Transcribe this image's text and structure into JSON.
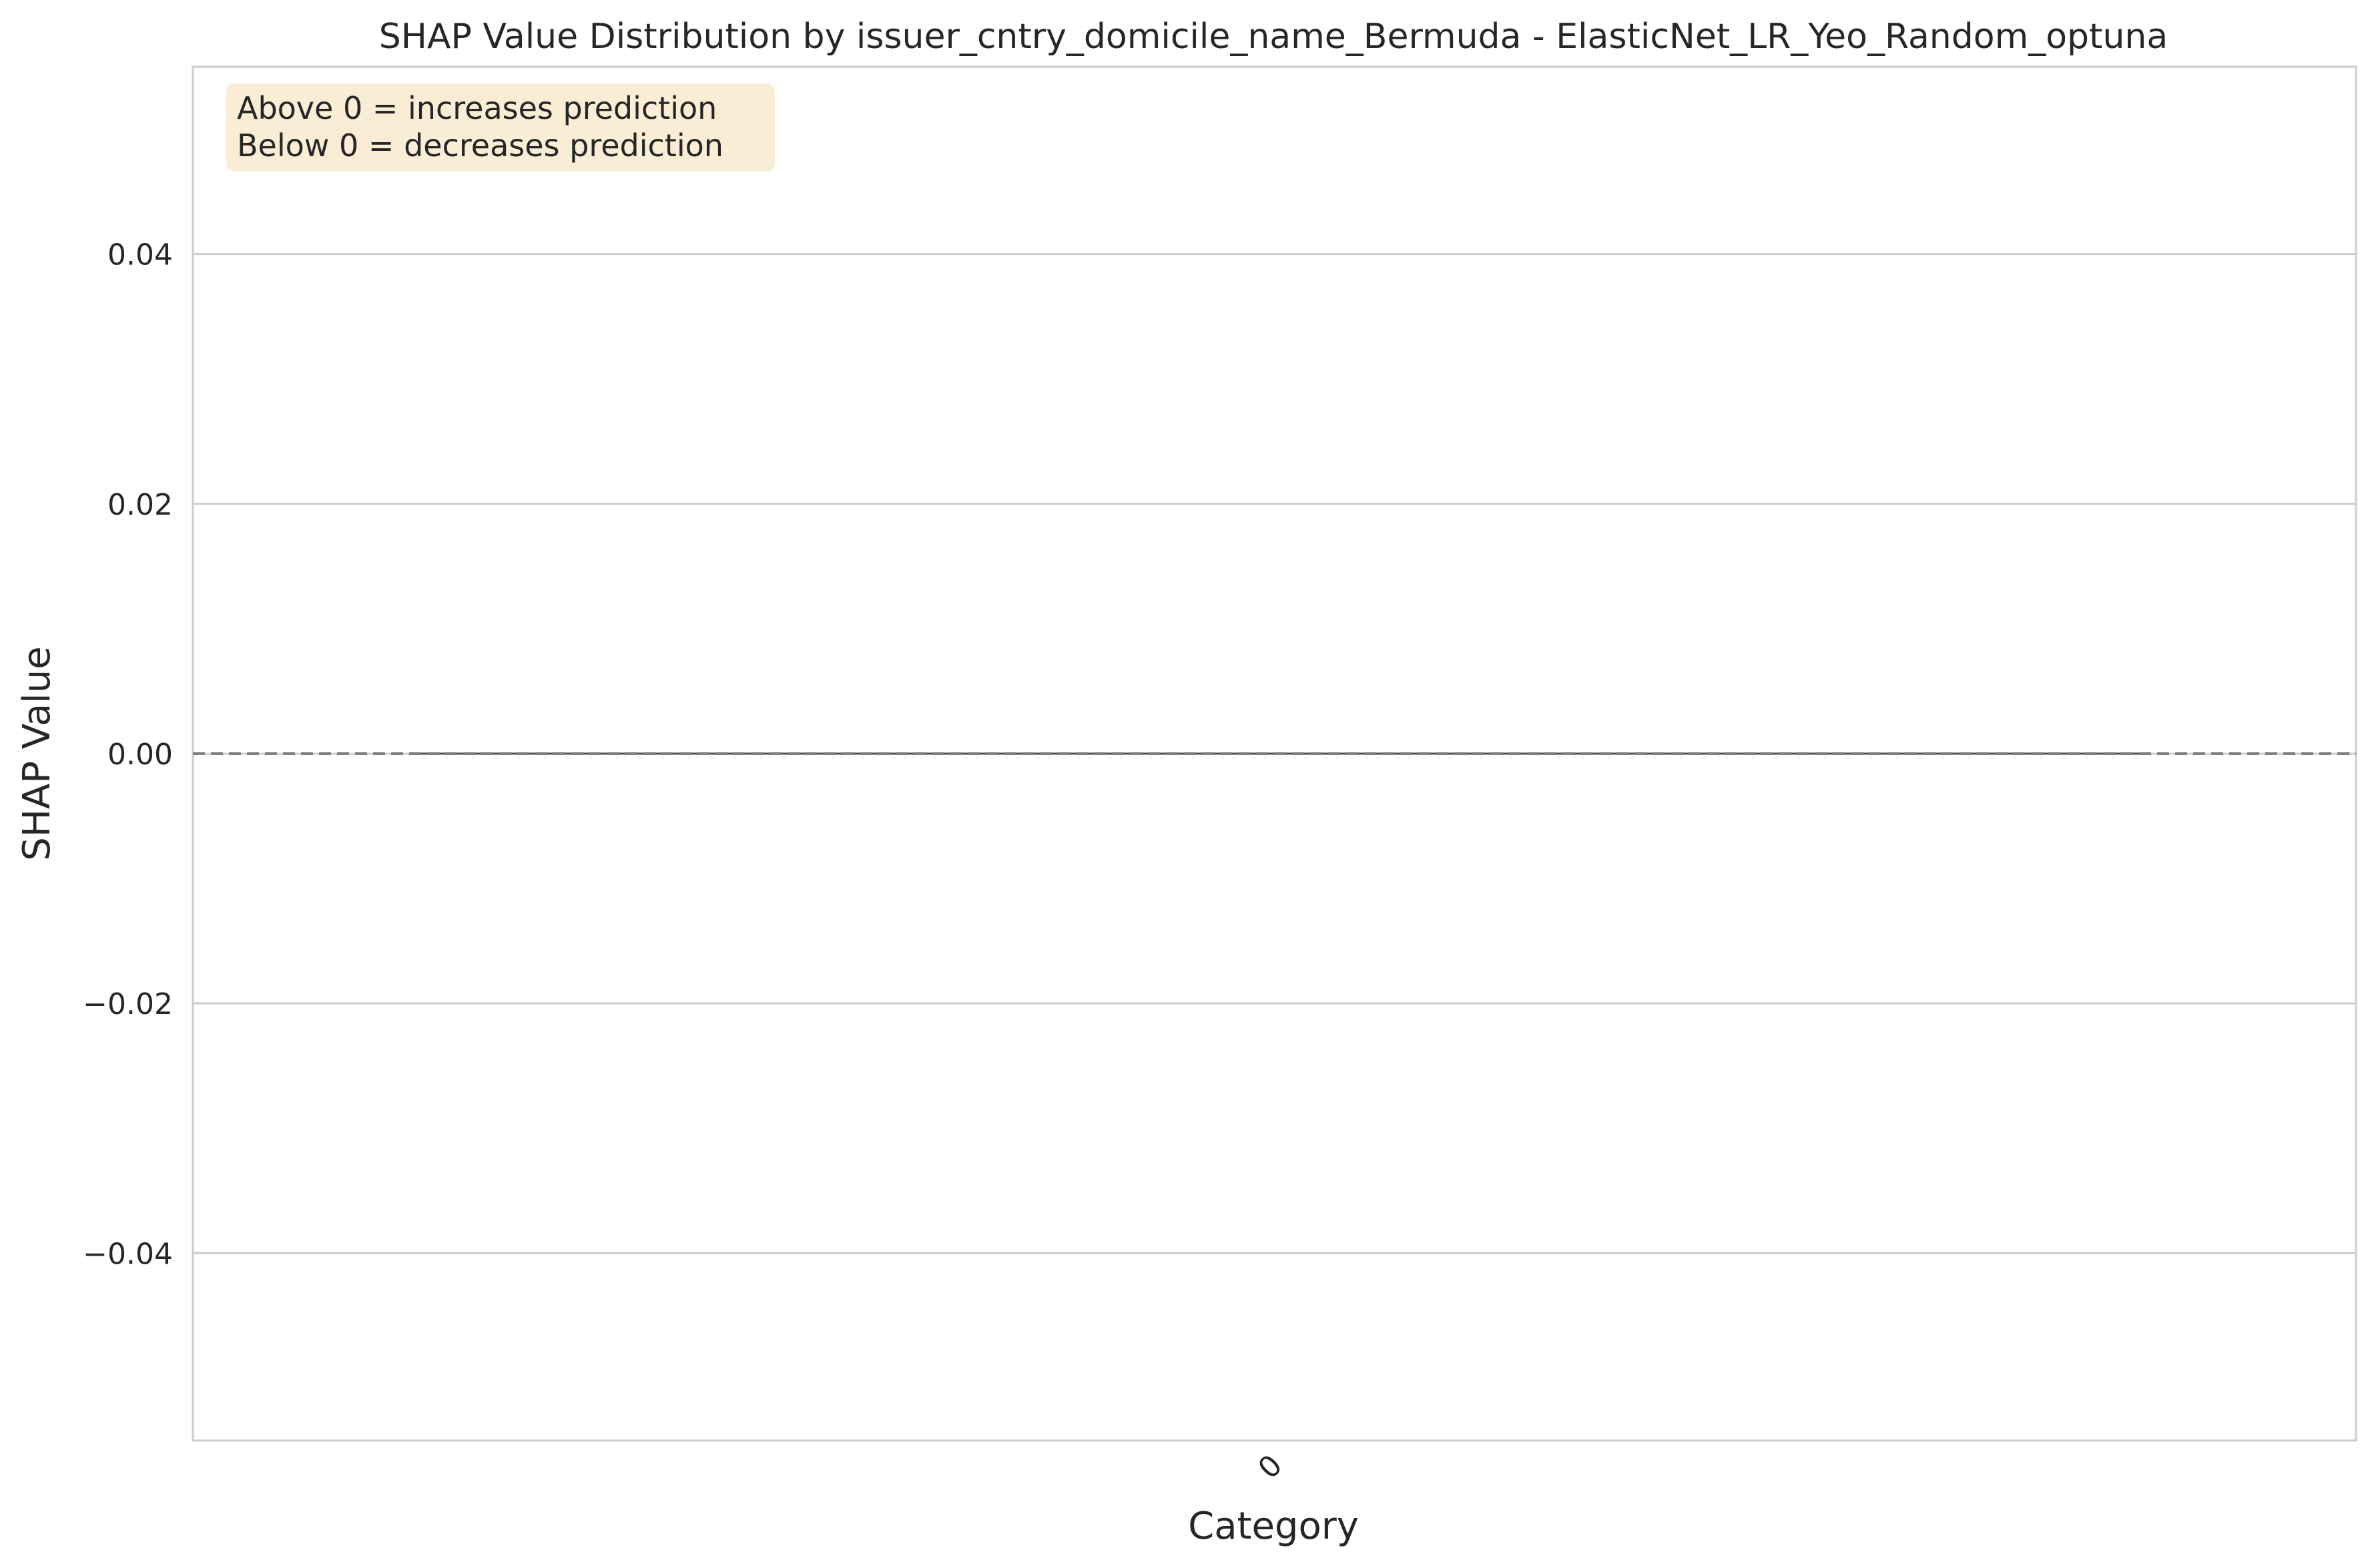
{
  "chart_data": {
    "type": "violin",
    "title": "SHAP Value Distribution by issuer_cntry_domicile_name_Bermuda - ElasticNet_LR_Yeo_Random_optuna",
    "xlabel": "Category",
    "ylabel": "SHAP Value",
    "categories": [
      "0"
    ],
    "series": [
      {
        "name": "0",
        "values": [
          0.0
        ],
        "min": 0.0,
        "max": 0.0,
        "median": 0.0
      }
    ],
    "ylim": [
      -0.055,
      0.055
    ],
    "yticks": [
      0.04,
      0.02,
      0.0,
      -0.02,
      -0.04
    ],
    "ytick_labels": [
      "0.04",
      "0.02",
      "0.00",
      "−0.02",
      "−0.04"
    ],
    "reference_line": {
      "y": 0.0,
      "style": "dashed",
      "color": "#808080"
    },
    "grid": true,
    "annotation": {
      "lines": [
        "Above 0 = increases prediction",
        "Below 0 = decreases prediction"
      ],
      "placement": "top-left",
      "background": "#f5deb3"
    },
    "colors": {
      "grid": "#cccccc",
      "frame": "#cccccc",
      "text": "#262626",
      "violin": "#4d4d4d"
    }
  }
}
